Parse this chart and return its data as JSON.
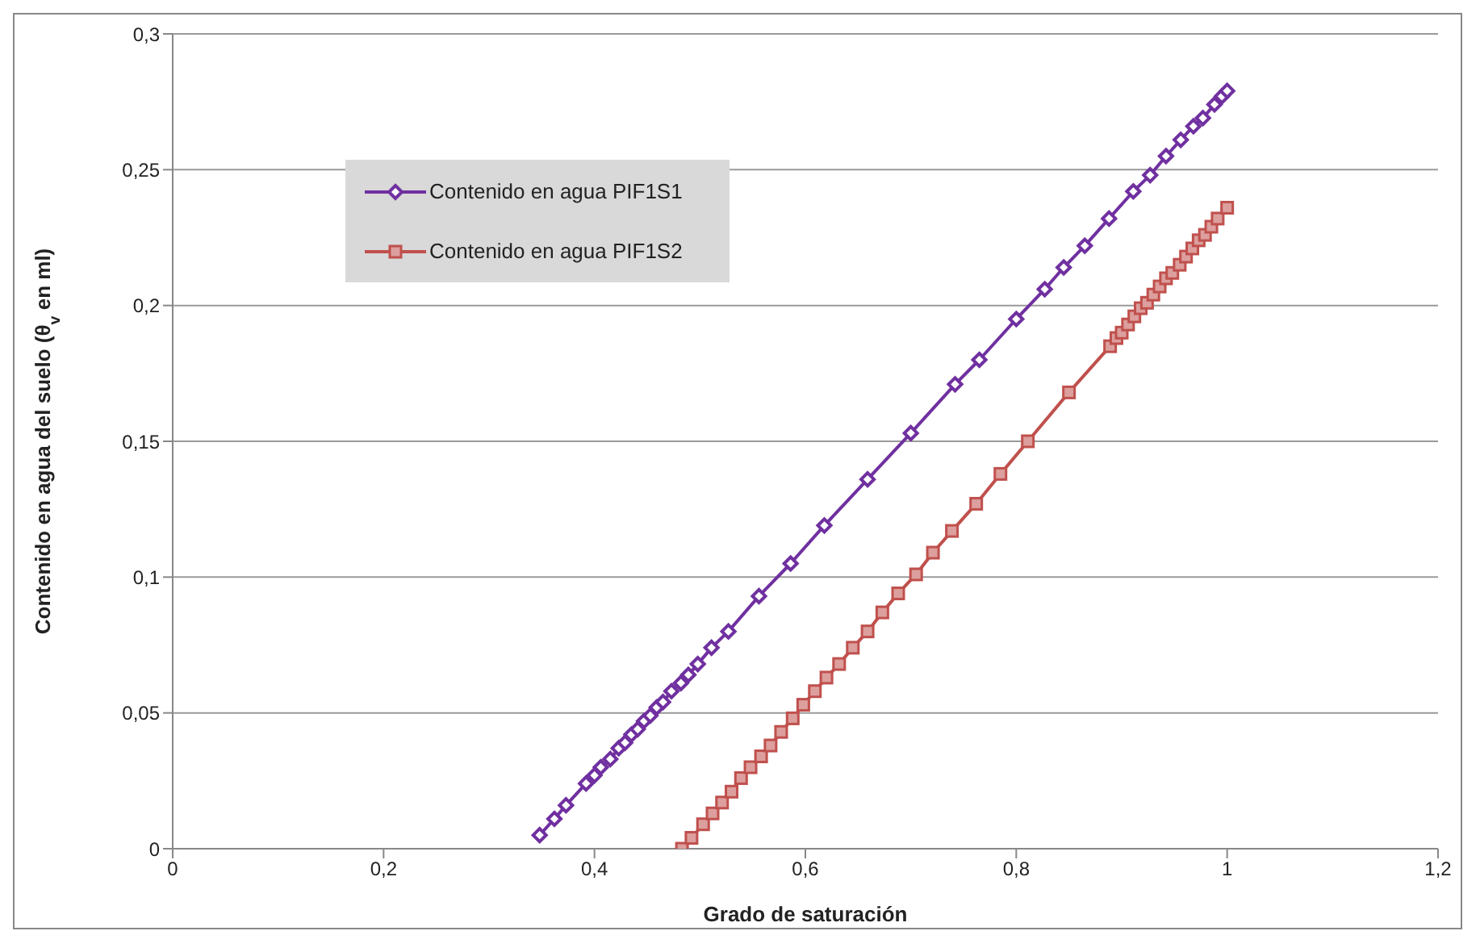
{
  "chart_data": {
    "type": "line",
    "xlabel": "Grado de saturación",
    "ylabel": "Contenido en agua del suelo (θ$_{v}$ en ml)",
    "xlim": [
      0,
      1.2
    ],
    "xticks": [
      {
        "value": 0,
        "label": "0"
      },
      {
        "value": 0.2,
        "label": "0,2"
      },
      {
        "value": 0.4,
        "label": "0,4"
      },
      {
        "value": 0.6,
        "label": "0,6"
      },
      {
        "value": 0.8,
        "label": "0,8"
      },
      {
        "value": 1,
        "label": "1"
      },
      {
        "value": 1.2,
        "label": "1,2"
      }
    ],
    "ylim": [
      0,
      0.3
    ],
    "yticks": [
      {
        "value": 0,
        "label": "0"
      },
      {
        "value": 0.05,
        "label": "0,05"
      },
      {
        "value": 0.1,
        "label": "0,1"
      },
      {
        "value": 0.15,
        "label": "0,15"
      },
      {
        "value": 0.2,
        "label": "0,2"
      },
      {
        "value": 0.25,
        "label": "0,25"
      },
      {
        "value": 0.3,
        "label": "0,3"
      }
    ],
    "grid": "y",
    "legend": "top left",
    "line_style": "solid",
    "series": [
      {
        "name": "Contenido en agua PIF1S1",
        "color": "#7030a0",
        "marker": "diamond",
        "x": [
          0.348,
          0.362,
          0.373,
          0.392,
          0.4,
          0.406,
          0.415,
          0.423,
          0.429,
          0.435,
          0.441,
          0.447,
          0.453,
          0.459,
          0.465,
          0.473,
          0.482,
          0.489,
          0.498,
          0.511,
          0.527,
          0.556,
          0.586,
          0.618,
          0.659,
          0.7,
          0.742,
          0.765,
          0.8,
          0.827,
          0.845,
          0.865,
          0.888,
          0.911,
          0.927,
          0.942,
          0.956,
          0.968,
          0.977,
          0.988,
          0.995,
          1.0
        ],
        "values": [
          0.005,
          0.011,
          0.016,
          0.024,
          0.027,
          0.03,
          0.033,
          0.037,
          0.039,
          0.042,
          0.044,
          0.047,
          0.049,
          0.052,
          0.054,
          0.058,
          0.061,
          0.064,
          0.068,
          0.074,
          0.08,
          0.093,
          0.105,
          0.119,
          0.136,
          0.153,
          0.171,
          0.18,
          0.195,
          0.206,
          0.214,
          0.222,
          0.232,
          0.242,
          0.248,
          0.255,
          0.261,
          0.266,
          0.269,
          0.274,
          0.277,
          0.279
        ]
      },
      {
        "name": "Contenido en agua PIF1S2",
        "color": "#c0504d",
        "marker": "square",
        "x": [
          0.483,
          0.492,
          0.503,
          0.512,
          0.521,
          0.53,
          0.539,
          0.548,
          0.558,
          0.567,
          0.577,
          0.588,
          0.598,
          0.609,
          0.62,
          0.632,
          0.645,
          0.659,
          0.673,
          0.688,
          0.705,
          0.721,
          0.739,
          0.762,
          0.785,
          0.811,
          0.85,
          0.889,
          0.895,
          0.9,
          0.906,
          0.912,
          0.918,
          0.924,
          0.93,
          0.936,
          0.942,
          0.948,
          0.955,
          0.961,
          0.967,
          0.973,
          0.979,
          0.985,
          0.991,
          1.0
        ],
        "values": [
          0,
          0.004,
          0.009,
          0.013,
          0.017,
          0.021,
          0.026,
          0.03,
          0.034,
          0.038,
          0.043,
          0.048,
          0.053,
          0.058,
          0.063,
          0.068,
          0.074,
          0.08,
          0.087,
          0.094,
          0.101,
          0.109,
          0.117,
          0.127,
          0.138,
          0.15,
          0.168,
          0.185,
          0.188,
          0.19,
          0.193,
          0.196,
          0.199,
          0.201,
          0.204,
          0.207,
          0.21,
          0.212,
          0.215,
          0.218,
          0.221,
          0.224,
          0.226,
          0.229,
          0.232,
          0.236
        ]
      }
    ]
  }
}
